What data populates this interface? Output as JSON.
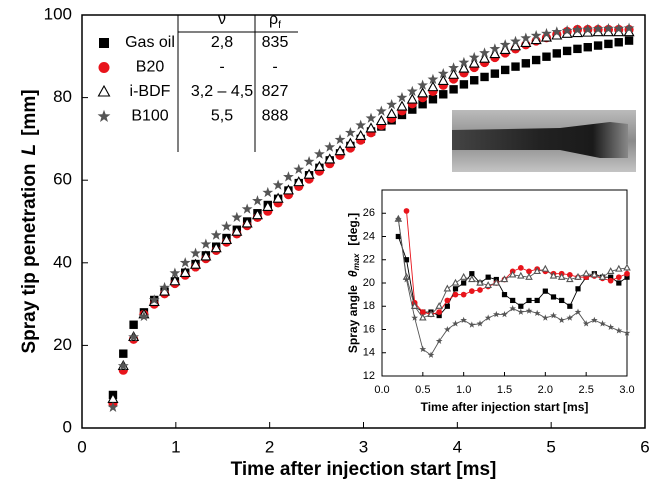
{
  "chart_data": [
    {
      "type": "scatter",
      "xlabel": "Time after injection start  [ms]",
      "ylabel": "Spray tip penetration",
      "ylabel_symbol": "L",
      "ylabel_unit": "[mm]",
      "xlim": [
        0,
        6
      ],
      "xticks": [
        0,
        1,
        2,
        3,
        4,
        5,
        6
      ],
      "ylim": [
        0,
        100
      ],
      "yticks": [
        0,
        20,
        40,
        60,
        80,
        100
      ],
      "legend": "top-left",
      "legend_columns": [
        {
          "text": "ν"
        },
        {
          "text": "ρ",
          "subscript": "f"
        }
      ],
      "legend_values": [
        [
          "2,8",
          "835"
        ],
        [
          "-",
          "-"
        ],
        [
          "3,2 – 4,5",
          "827"
        ],
        [
          "5,5",
          "888"
        ]
      ],
      "x": [
        0.33,
        0.44,
        0.55,
        0.66,
        0.77,
        0.88,
        0.99,
        1.1,
        1.21,
        1.32,
        1.43,
        1.54,
        1.65,
        1.76,
        1.87,
        1.98,
        2.09,
        2.2,
        2.31,
        2.42,
        2.53,
        2.64,
        2.75,
        2.86,
        2.97,
        3.08,
        3.19,
        3.3,
        3.41,
        3.52,
        3.63,
        3.74,
        3.85,
        3.96,
        4.07,
        4.18,
        4.29,
        4.4,
        4.51,
        4.62,
        4.73,
        4.84,
        4.95,
        5.06,
        5.17,
        5.28,
        5.39,
        5.5,
        5.61,
        5.72,
        5.83
      ],
      "series": [
        {
          "name": "Gas oil",
          "marker": "square",
          "color": "#000000",
          "values": [
            8,
            18,
            25,
            28,
            31,
            33,
            35.5,
            37.6,
            39.7,
            41.8,
            43.9,
            46,
            48,
            50,
            52,
            54,
            55.5,
            57.5,
            59.3,
            61.2,
            63,
            64.8,
            66.5,
            68.3,
            70,
            71.8,
            73,
            74.5,
            75.8,
            77.1,
            78.4,
            79.6,
            80.8,
            82,
            83.2,
            84.2,
            85,
            85.8,
            86.7,
            87.5,
            88.3,
            89.1,
            89.9,
            90.7,
            91.3,
            91.8,
            92.2,
            92.6,
            93,
            93.4,
            93.8
          ]
        },
        {
          "name": "B20",
          "marker": "circle",
          "color": "#e8141b",
          "values": [
            6,
            14,
            21.5,
            27.5,
            30,
            32.5,
            35,
            37,
            39,
            41,
            43,
            45,
            47,
            49,
            51,
            52.5,
            54.5,
            56.5,
            58.5,
            60.3,
            62.2,
            64,
            66,
            67.8,
            69.7,
            71.5,
            73.3,
            75,
            76.8,
            78.5,
            80,
            81.5,
            83,
            84.5,
            86,
            87.3,
            88.5,
            89.7,
            90.8,
            91.8,
            92.8,
            93.7,
            94.5,
            95.3,
            96,
            96.5,
            96.5,
            96.5,
            96.5,
            96.5,
            96.5
          ]
        },
        {
          "name": "i-BDF",
          "marker": "triangle",
          "color": "#000000",
          "values": [
            7,
            15,
            22,
            27.5,
            30.5,
            33,
            35.5,
            37.5,
            39.5,
            41.5,
            43.5,
            45.5,
            47.5,
            49.5,
            51.5,
            53.5,
            55.5,
            57.5,
            59.5,
            61.3,
            63.2,
            65,
            67,
            68.8,
            70.7,
            72.5,
            74.3,
            76,
            77.8,
            79.5,
            81,
            82.5,
            84,
            85.5,
            87,
            88.2,
            89.4,
            90.5,
            91.5,
            92.4,
            93.2,
            93.9,
            94.5,
            95,
            95.4,
            95.6,
            95.7,
            95.8,
            95.8,
            95.8,
            95.8
          ]
        },
        {
          "name": "B100",
          "marker": "star",
          "color": "#555555",
          "values": [
            5,
            15,
            22,
            27,
            31,
            34,
            37.5,
            40,
            42.3,
            44.5,
            46.7,
            48.8,
            51,
            53,
            55,
            57,
            58.8,
            60.8,
            62.6,
            64.5,
            66.3,
            68,
            69.8,
            71.5,
            73.3,
            75,
            76.7,
            78.3,
            80,
            81.5,
            83,
            84.4,
            85.8,
            87.2,
            88.5,
            89.7,
            90.8,
            91.8,
            92.8,
            93.6,
            94.4,
            95,
            95.5,
            95.9,
            96.2,
            96.4,
            96.5,
            96.6,
            96.7,
            96.7,
            96.8
          ]
        }
      ]
    },
    {
      "type": "line",
      "xlabel": "Time after injection start  [ms]",
      "ylabel": "Spray angle",
      "ylabel_symbol": "θ",
      "ylabel_sub": "max",
      "ylabel_unit": "[deg.]",
      "xlim": [
        0,
        3
      ],
      "xticks": [
        {
          "value": 0,
          "label": "0.0"
        },
        0.5,
        {
          "value": 1,
          "label": "1.0"
        },
        1.5,
        {
          "value": 2,
          "label": "2.0"
        },
        2.5,
        {
          "value": 3,
          "label": "3.0"
        }
      ],
      "ylim": [
        12,
        28
      ],
      "yticks": [
        12,
        14,
        16,
        18,
        20,
        22,
        24,
        26
      ],
      "x": [
        0.2,
        0.3,
        0.4,
        0.5,
        0.6,
        0.7,
        0.8,
        0.9,
        1.0,
        1.1,
        1.2,
        1.3,
        1.4,
        1.5,
        1.6,
        1.7,
        1.8,
        1.9,
        2.0,
        2.1,
        2.2,
        2.3,
        2.4,
        2.5,
        2.6,
        2.7,
        2.8,
        2.9,
        3.0
      ],
      "series": [
        {
          "marker": "square",
          "color": "#000000",
          "values": [
            24,
            22,
            18,
            17.5,
            17.5,
            17.2,
            18,
            19.5,
            20,
            20.8,
            20,
            20.5,
            20.3,
            19,
            18.5,
            18,
            18.5,
            18.5,
            19.3,
            18.8,
            18.5,
            18,
            19.5,
            20.5,
            20.8,
            20.5,
            20.5,
            20,
            20.5
          ]
        },
        {
          "marker": "circle",
          "color": "#e8141b",
          "values": [
            null,
            26.2,
            18.3,
            17.5,
            17.3,
            17.5,
            18.5,
            19,
            19,
            19.3,
            19.4,
            19.7,
            20,
            20.3,
            21,
            21.3,
            21,
            21.2,
            21,
            20.8,
            20.8,
            20.7,
            20.5,
            20.5,
            20.6,
            20.4,
            20.2,
            20.5,
            20.8
          ]
        },
        {
          "marker": "triangle",
          "color": "#555555",
          "values": [
            25.5,
            20.5,
            18,
            17,
            17.3,
            18,
            19.5,
            20,
            20.5,
            20.3,
            20,
            19.8,
            20,
            20.3,
            20.7,
            20.6,
            20.5,
            21,
            21.2,
            20.6,
            20.5,
            20.3,
            20.5,
            20.8,
            20.7,
            20.5,
            21,
            21.2,
            21.3
          ]
        },
        {
          "marker": "star",
          "color": "#555555",
          "values": [
            25.5,
            20.3,
            17,
            14.3,
            13.8,
            15,
            16,
            16.5,
            16.8,
            16.4,
            16.5,
            17,
            17.3,
            17.3,
            17.8,
            17.5,
            17.6,
            17.4,
            17,
            17.2,
            16.8,
            17,
            17.5,
            16.5,
            16.8,
            16.5,
            16.2,
            15.9,
            15.7
          ]
        }
      ]
    }
  ]
}
